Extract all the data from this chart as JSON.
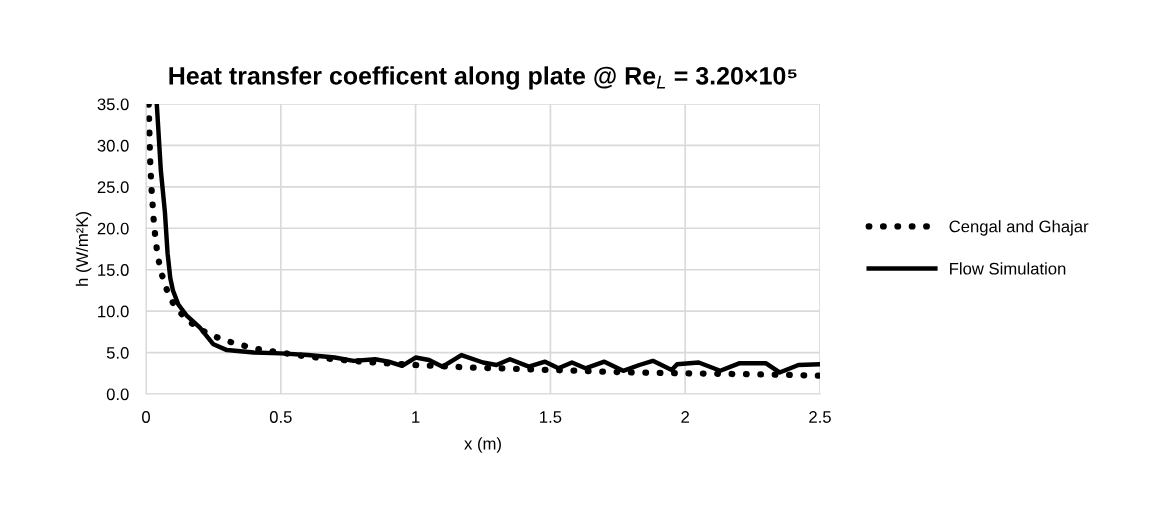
{
  "chart_data": {
    "type": "line",
    "title": "Heat transfer coefficent along plate @ Re$_{L}$ = 3.20×10⁵",
    "xlabel": "x (m)",
    "ylabel": "h (W/m²K)",
    "xlim": [
      0,
      2.5
    ],
    "ylim": [
      0,
      35
    ],
    "xticks": [
      0,
      0.5,
      1,
      1.5,
      2,
      2.5
    ],
    "yticks": [
      {
        "value": 0,
        "label": "0.0"
      },
      {
        "value": 5,
        "label": "5.0"
      },
      {
        "value": 10,
        "label": "10.0"
      },
      {
        "value": 15,
        "label": "15.0"
      },
      {
        "value": 20,
        "label": "20.0"
      },
      {
        "value": 25,
        "label": "25.0"
      },
      {
        "value": 30,
        "label": "30.0"
      },
      {
        "value": 35,
        "label": "35.0"
      }
    ],
    "grid": true,
    "legend": "right",
    "marker": "none",
    "series": [
      {
        "name": "Cengal and Ghajar",
        "color": "#000000",
        "line_style": "dotted",
        "x": [
          0.01,
          0.015,
          0.02,
          0.03,
          0.04,
          0.05,
          0.06,
          0.08,
          0.1,
          0.12,
          0.15,
          0.2,
          0.25,
          0.3,
          0.4,
          0.5,
          0.6,
          0.8,
          1.0,
          1.2,
          1.4,
          1.6,
          1.8,
          2.0,
          2.2,
          2.4,
          2.5
        ],
        "values": [
          35,
          28.5,
          25,
          20.3,
          17.5,
          15.6,
          14.3,
          12.3,
          11.0,
          10.1,
          9.0,
          7.8,
          7.0,
          6.4,
          5.5,
          5.0,
          4.5,
          3.9,
          3.5,
          3.2,
          3.0,
          2.8,
          2.6,
          2.5,
          2.4,
          2.3,
          2.2
        ]
      },
      {
        "name": "Flow Simulation",
        "color": "#000000",
        "line_style": "solid",
        "x": [
          0.04,
          0.055,
          0.07,
          0.08,
          0.09,
          0.1,
          0.12,
          0.15,
          0.2,
          0.25,
          0.3,
          0.4,
          0.5,
          0.6,
          0.7,
          0.77,
          0.85,
          0.9,
          0.95,
          1.0,
          1.05,
          1.1,
          1.17,
          1.25,
          1.3,
          1.35,
          1.42,
          1.48,
          1.53,
          1.58,
          1.63,
          1.7,
          1.77,
          1.83,
          1.88,
          1.95,
          1.97,
          2.05,
          2.13,
          2.2,
          2.3,
          2.35,
          2.42,
          2.5
        ],
        "values": [
          35,
          27,
          22,
          17,
          14,
          12.5,
          10.8,
          9.5,
          8.0,
          6.0,
          5.3,
          5.0,
          4.9,
          4.7,
          4.4,
          4.0,
          4.2,
          3.9,
          3.4,
          4.4,
          4.1,
          3.3,
          4.7,
          3.8,
          3.5,
          4.2,
          3.3,
          3.9,
          3.1,
          3.8,
          3.1,
          3.9,
          2.8,
          3.5,
          4.0,
          2.9,
          3.6,
          3.8,
          2.8,
          3.7,
          3.7,
          2.6,
          3.5,
          3.6
        ]
      }
    ]
  }
}
